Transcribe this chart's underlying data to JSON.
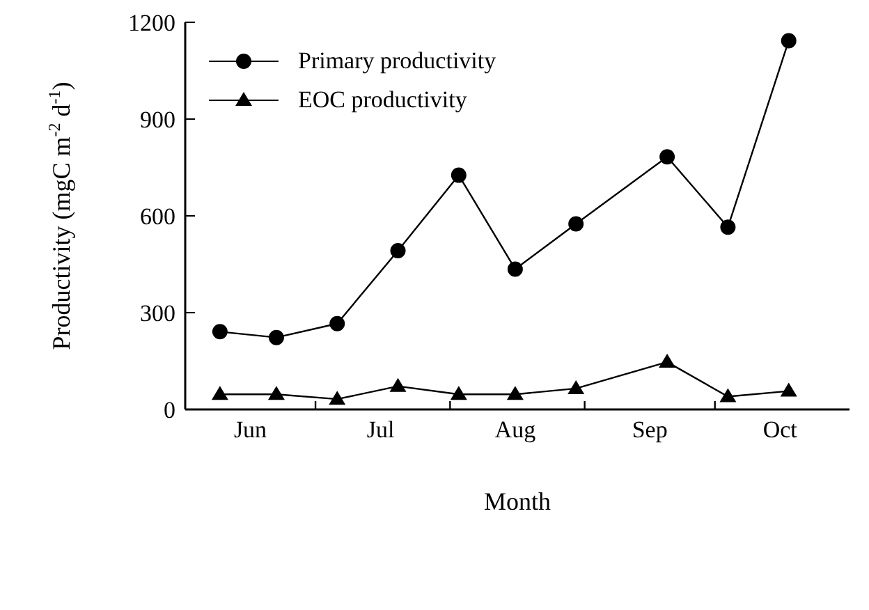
{
  "chart_data": {
    "type": "line",
    "xlabel": "Month",
    "ylabel": "Productivity (mgC m$^{-2}$ d$^{-1}$)",
    "xlim": [
      "--06-01",
      "--11-01"
    ],
    "xticks": [
      {
        "value": "--06-16",
        "label": "Jun"
      },
      {
        "value": "--07-01",
        "label": null
      },
      {
        "value": "--07-16",
        "label": "Jul"
      },
      {
        "value": "--08-01",
        "label": null
      },
      {
        "value": "--08-16",
        "label": "Aug"
      },
      {
        "value": "--09-01",
        "label": null
      },
      {
        "value": "--09-16",
        "label": "Sep"
      },
      {
        "value": "--10-01",
        "label": null
      },
      {
        "value": "--10-16",
        "label": "Oct"
      }
    ],
    "ylim": [
      0,
      1200
    ],
    "yticks": [
      0,
      300,
      600,
      900,
      1200
    ],
    "x": [
      "--06-09",
      "--06-22",
      "--07-06",
      "--07-20",
      "--08-03",
      "--08-16",
      "--08-30",
      "--09-20",
      "--10-04",
      "--10-18"
    ],
    "series": [
      {
        "name": "Primary productivity",
        "color": "#000000",
        "marker": "circle",
        "values": [
          241,
          223,
          266,
          492,
          726,
          435,
          575,
          783,
          565,
          1143
        ]
      },
      {
        "name": "EOC productivity",
        "color": "#000000",
        "marker": "triangle",
        "values": [
          47,
          47,
          32,
          72,
          47,
          47,
          65,
          147,
          40,
          57
        ]
      }
    ],
    "legend": "top left",
    "grid": false,
    "line_style": "solid"
  }
}
